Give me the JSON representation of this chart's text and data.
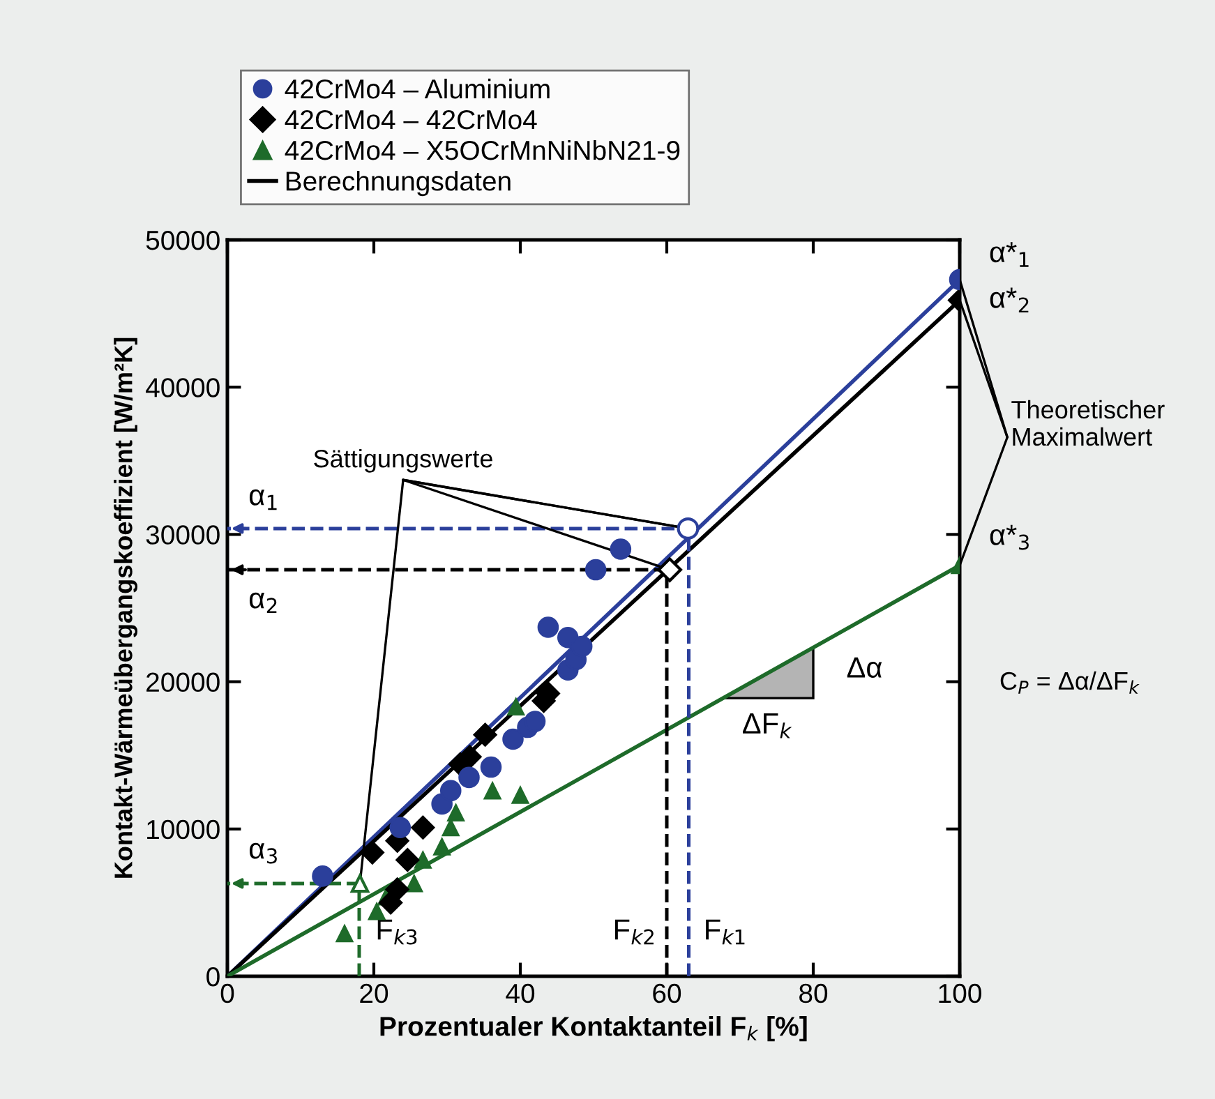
{
  "chart_data": {
    "type": "scatter",
    "xlabel": "Prozentualer Kontaktanteil F$_{k}$ [%]",
    "ylabel": "Kontakt-Wärmeübergangskoeffizient [W/m²K]",
    "xlim": [
      0,
      100
    ],
    "ylim": [
      0,
      50000
    ],
    "xticks": [
      0,
      20,
      40,
      60,
      80,
      100
    ],
    "yticks": [
      0,
      10000,
      20000,
      30000,
      40000,
      50000
    ],
    "grid": false,
    "legend": "top left",
    "series": [
      {
        "name": "42CrMo4 – Aluminium",
        "color": "#2b3f9b",
        "marker": "circle",
        "x": [
          13,
          23.6,
          29.3,
          30.5,
          33,
          36,
          39,
          41,
          42,
          43.8,
          46.5,
          47.6,
          46.5,
          48.4,
          50.3,
          53.7,
          100
        ],
        "values": [
          6800,
          10100,
          11700,
          12600,
          13500,
          14200,
          16100,
          16900,
          17300,
          23700,
          20800,
          21500,
          23000,
          22400,
          27600,
          29000,
          47300
        ]
      },
      {
        "name": "42CrMo4 – 42CrMo4",
        "color": "#000000",
        "marker": "diamond",
        "x": [
          19.8,
          23.2,
          24.6,
          26.7,
          22.3,
          23.2,
          31.8,
          33.1,
          35.2,
          43.2,
          43.8,
          100
        ],
        "values": [
          8400,
          9200,
          7900,
          10100,
          5000,
          5900,
          14400,
          14900,
          16400,
          18700,
          19200,
          45900
        ]
      },
      {
        "name": "42CrMo4 – X5OCrMnNiNbN21-9",
        "color": "#1e6b2a",
        "marker": "triangle",
        "x": [
          16,
          20.4,
          21.7,
          25.5,
          26.7,
          29.3,
          30.5,
          31.2,
          36.2,
          40,
          39.4,
          100
        ],
        "values": [
          2900,
          4400,
          5400,
          6300,
          7900,
          8800,
          10100,
          11100,
          12600,
          12300,
          18300,
          27900
        ]
      },
      {
        "type": "line",
        "color": "#2b3f9b",
        "x": [
          0,
          100
        ],
        "values": [
          0,
          47300
        ]
      },
      {
        "type": "line",
        "name": "Berechnungsdaten",
        "color": "#000000",
        "x": [
          0,
          100
        ],
        "values": [
          0,
          45900
        ]
      },
      {
        "type": "line",
        "color": "#1e6b2a",
        "x": [
          0,
          100
        ],
        "values": [
          0,
          27900
        ]
      },
      {
        "type": "line",
        "color": "#2b3f9b",
        "line_style": "dashed",
        "x": [
          63,
          63,
          0
        ],
        "values": [
          0,
          30400,
          30400
        ]
      },
      {
        "type": "line",
        "color": "#000000",
        "line_style": "dashed",
        "x": [
          60,
          60,
          0
        ],
        "values": [
          0,
          27600,
          27600
        ]
      },
      {
        "type": "line",
        "color": "#1e6b2a",
        "line_style": "dashed",
        "x": [
          18,
          18,
          0
        ],
        "values": [
          0,
          6300,
          6300
        ]
      },
      {
        "color": "#2b3f9b",
        "marker": "circle",
        "x": [
          62.9
        ],
        "values": [
          30400
        ]
      },
      {
        "color": "#000000",
        "marker": "diamond",
        "x": [
          60.4
        ],
        "values": [
          27600
        ]
      },
      {
        "color": "#1e6b2a",
        "marker": "triangle",
        "x": [
          18.1
        ],
        "values": [
          6300
        ]
      }
    ],
    "annotations": [
      {
        "text": "Sättigungswerte",
        "x": 62.9,
        "y": 30400
      },
      "Theoretischer\nMaximalwert",
      "α$_{1}$",
      "α$_{2}$",
      "α$_{3}$",
      "α*$_{1}$",
      "α*$_{2}$",
      "α*$_{3}$",
      "F$_{k3}$",
      "F$_{k2}$",
      "F$_{k1}$",
      "Δα",
      "ΔF$_{k}$",
      "C$_{P}$ = Δα/ΔF$_{k}$"
    ]
  }
}
